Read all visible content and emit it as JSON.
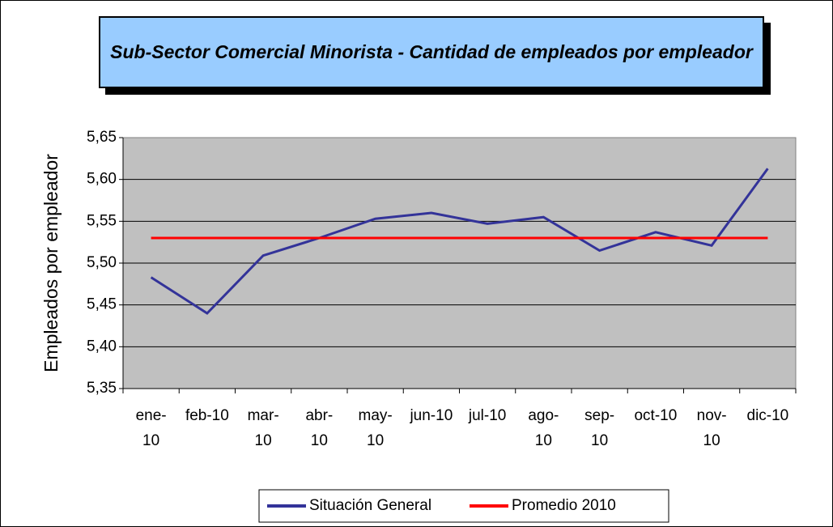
{
  "chart_data": {
    "type": "line",
    "title": "Sub-Sector Comercial Minorista - Cantidad de empleados por empleador",
    "y_label": "Empleados por empleador",
    "categories": [
      "ene-10",
      "feb-10",
      "mar-10",
      "abr-10",
      "may-10",
      "jun-10",
      "jul-10",
      "ago-10",
      "sep-10",
      "oct-10",
      "nov-10",
      "dic-10"
    ],
    "series": [
      {
        "name": "Situación General",
        "color": "#333399",
        "values": [
          5.483,
          5.44,
          5.509,
          5.53,
          5.553,
          5.56,
          5.547,
          5.555,
          5.515,
          5.537,
          5.521,
          5.613
        ]
      },
      {
        "name": "Promedio 2010",
        "color": "#ff0000",
        "values": [
          5.53,
          5.53,
          5.53,
          5.53,
          5.53,
          5.53,
          5.53,
          5.53,
          5.53,
          5.53,
          5.53,
          5.53
        ]
      }
    ],
    "ylim": [
      5.35,
      5.65
    ],
    "yticks": [
      {
        "value": 5.35,
        "label": "5,35"
      },
      {
        "value": 5.4,
        "label": "5,40"
      },
      {
        "value": 5.45,
        "label": "5,45"
      },
      {
        "value": 5.5,
        "label": "5,50"
      },
      {
        "value": 5.55,
        "label": "5,55"
      },
      {
        "value": 5.6,
        "label": "5,60"
      },
      {
        "value": 5.65,
        "label": "5,65"
      }
    ],
    "grid": true,
    "legend": "bottom"
  }
}
